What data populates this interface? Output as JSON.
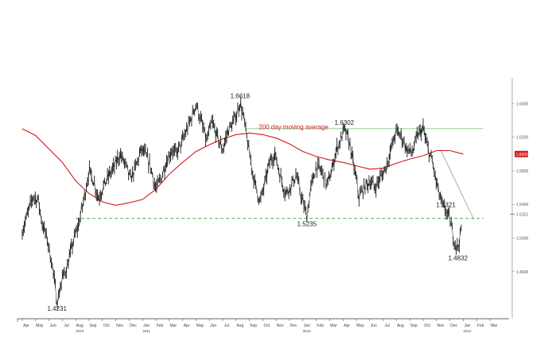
{
  "chart_data": {
    "type": "line",
    "title": "",
    "xlabel": "",
    "ylabel": "",
    "x_labels": [
      "Apr",
      "May",
      "Jun",
      "Jul",
      "Aug",
      "Sep",
      "Oct",
      "Nov",
      "Dec",
      "Jan",
      "Feb",
      "Mar",
      "Apr",
      "May",
      "Jun",
      "Jul",
      "Aug",
      "Sep",
      "Oct",
      "Nov",
      "Dec",
      "Jan",
      "Feb",
      "Mar",
      "Apr",
      "May",
      "Jun",
      "Jul",
      "Aug",
      "Sep",
      "Oct",
      "Nov",
      "Dec",
      "Jan",
      "Feb",
      "Mar"
    ],
    "year_labels": [
      {
        "month_index": 4,
        "label": "2010"
      },
      {
        "month_index": 9,
        "label": "2011"
      },
      {
        "month_index": 21,
        "label": "2012"
      },
      {
        "month_index": 33,
        "label": "2013"
      }
    ],
    "y_ticks": [
      "1.6600",
      "1.6200",
      "1.5800",
      "1.5400",
      "1.5000",
      "1.4600"
    ],
    "ylim": [
      1.405,
      1.7
    ],
    "current_price_label": "1.5321",
    "ma_value_label": "1.6000",
    "grid": false,
    "series": [
      {
        "name": "",
        "style": "daily price bars",
        "color": "#1a1a1a",
        "points": [
          [
            0.0,
            1.508
          ],
          [
            0.4,
            1.528
          ],
          [
            0.8,
            1.55
          ],
          [
            1.2,
            1.545
          ],
          [
            1.5,
            1.517
          ],
          [
            1.9,
            1.497
          ],
          [
            2.3,
            1.462
          ],
          [
            2.6,
            1.423
          ],
          [
            3.0,
            1.452
          ],
          [
            3.4,
            1.468
          ],
          [
            3.8,
            1.495
          ],
          [
            4.2,
            1.515
          ],
          [
            4.6,
            1.545
          ],
          [
            5.0,
            1.58
          ],
          [
            5.3,
            1.57
          ],
          [
            5.7,
            1.548
          ],
          [
            6.1,
            1.562
          ],
          [
            6.5,
            1.575
          ],
          [
            6.9,
            1.585
          ],
          [
            7.3,
            1.6
          ],
          [
            7.7,
            1.588
          ],
          [
            8.1,
            1.57
          ],
          [
            8.5,
            1.585
          ],
          [
            8.9,
            1.605
          ],
          [
            9.2,
            1.6
          ],
          [
            9.6,
            1.585
          ],
          [
            10.0,
            1.558
          ],
          [
            10.4,
            1.572
          ],
          [
            10.8,
            1.592
          ],
          [
            11.2,
            1.605
          ],
          [
            11.5,
            1.6
          ],
          [
            11.9,
            1.612
          ],
          [
            12.3,
            1.628
          ],
          [
            12.7,
            1.645
          ],
          [
            13.0,
            1.66
          ],
          [
            13.4,
            1.638
          ],
          [
            13.8,
            1.615
          ],
          [
            14.2,
            1.638
          ],
          [
            14.6,
            1.62
          ],
          [
            15.0,
            1.605
          ],
          [
            15.4,
            1.628
          ],
          [
            15.8,
            1.638
          ],
          [
            16.1,
            1.65
          ],
          [
            16.3,
            1.662
          ],
          [
            16.6,
            1.64
          ],
          [
            17.0,
            1.6
          ],
          [
            17.4,
            1.565
          ],
          [
            17.8,
            1.543
          ],
          [
            18.2,
            1.568
          ],
          [
            18.5,
            1.59
          ],
          [
            18.9,
            1.6
          ],
          [
            19.3,
            1.575
          ],
          [
            19.7,
            1.553
          ],
          [
            20.1,
            1.562
          ],
          [
            20.5,
            1.575
          ],
          [
            20.9,
            1.548
          ],
          [
            21.3,
            1.526
          ],
          [
            21.6,
            1.56
          ],
          [
            22.0,
            1.585
          ],
          [
            22.4,
            1.58
          ],
          [
            22.8,
            1.563
          ],
          [
            23.2,
            1.582
          ],
          [
            23.5,
            1.605
          ],
          [
            23.9,
            1.62
          ],
          [
            24.1,
            1.63
          ],
          [
            24.5,
            1.612
          ],
          [
            24.9,
            1.578
          ],
          [
            25.2,
            1.549
          ],
          [
            25.6,
            1.56
          ],
          [
            26.0,
            1.568
          ],
          [
            26.4,
            1.56
          ],
          [
            26.8,
            1.572
          ],
          [
            27.2,
            1.583
          ],
          [
            27.6,
            1.606
          ],
          [
            28.0,
            1.628
          ],
          [
            28.4,
            1.62
          ],
          [
            28.8,
            1.605
          ],
          [
            29.2,
            1.602
          ],
          [
            29.6,
            1.623
          ],
          [
            30.0,
            1.63
          ],
          [
            30.3,
            1.609
          ],
          [
            30.7,
            1.59
          ],
          [
            31.0,
            1.565
          ],
          [
            31.4,
            1.54
          ],
          [
            31.7,
            1.532
          ],
          [
            32.0,
            1.523
          ],
          [
            32.3,
            1.498
          ],
          [
            32.6,
            1.488
          ],
          [
            32.9,
            1.515
          ]
        ]
      },
      {
        "name": "200 day moving average",
        "style": "line",
        "color": "#d21a1a",
        "points": [
          [
            0.0,
            1.63
          ],
          [
            1.0,
            1.622
          ],
          [
            2.0,
            1.606
          ],
          [
            3.0,
            1.59
          ],
          [
            4.0,
            1.568
          ],
          [
            5.0,
            1.553
          ],
          [
            6.0,
            1.543
          ],
          [
            7.0,
            1.539
          ],
          [
            8.0,
            1.542
          ],
          [
            9.0,
            1.546
          ],
          [
            10.0,
            1.558
          ],
          [
            11.0,
            1.576
          ],
          [
            12.0,
            1.59
          ],
          [
            13.0,
            1.603
          ],
          [
            14.0,
            1.611
          ],
          [
            15.0,
            1.618
          ],
          [
            16.0,
            1.623
          ],
          [
            17.0,
            1.625
          ],
          [
            18.0,
            1.623
          ],
          [
            19.0,
            1.619
          ],
          [
            20.0,
            1.612
          ],
          [
            21.0,
            1.603
          ],
          [
            22.0,
            1.597
          ],
          [
            23.0,
            1.593
          ],
          [
            24.0,
            1.59
          ],
          [
            25.0,
            1.586
          ],
          [
            26.0,
            1.582
          ],
          [
            27.0,
            1.583
          ],
          [
            28.0,
            1.589
          ],
          [
            29.0,
            1.594
          ],
          [
            30.0,
            1.598
          ],
          [
            31.0,
            1.604
          ],
          [
            32.0,
            1.604
          ],
          [
            33.0,
            1.6
          ]
        ]
      }
    ],
    "horizontal_lines": [
      {
        "y": 1.6302,
        "x_from": 16.8,
        "x_to": 34.5,
        "color": "#8cc48c",
        "style": "solid"
      },
      {
        "y": 1.5235,
        "x_from": 4.0,
        "x_to": 34.5,
        "color": "#79c279",
        "style": "dashed"
      }
    ],
    "trendlines": [
      {
        "from": [
          31.3,
          1.605
        ],
        "to": [
          33.8,
          1.522
        ],
        "color": "#9a9a9a"
      }
    ],
    "annotations": [
      {
        "text": "1.4231",
        "x": 2.6,
        "y": 1.4231,
        "position": "below"
      },
      {
        "text": "1.6618",
        "x": 16.3,
        "y": 1.6618,
        "position": "above"
      },
      {
        "text": "1.6302",
        "x": 24.1,
        "y": 1.6302,
        "position": "above"
      },
      {
        "text": "1.5235",
        "x": 21.3,
        "y": 1.5235,
        "position": "below"
      },
      {
        "text": "1.5321",
        "x": 31.7,
        "y": 1.5321,
        "position": "above"
      },
      {
        "text": "1.4832",
        "x": 32.6,
        "y": 1.4832,
        "position": "below"
      },
      {
        "text": "200 day moving average",
        "x": 20.3,
        "y": 1.625,
        "position": "above",
        "color": "#d21a1a"
      }
    ]
  }
}
